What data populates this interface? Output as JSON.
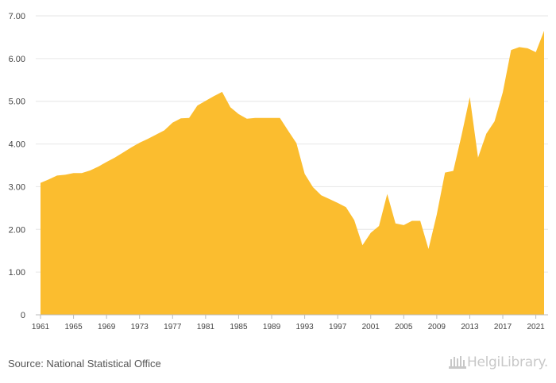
{
  "chart_data": {
    "type": "area",
    "color": "#FBBD2F",
    "grid": "horizontal",
    "ylim": [
      0,
      7
    ],
    "y_ticks": [
      "0",
      "1.00",
      "2.00",
      "3.00",
      "4.00",
      "5.00",
      "6.00",
      "7.00"
    ],
    "x_ticks": [
      "1961",
      "1965",
      "1969",
      "1973",
      "1977",
      "1981",
      "1985",
      "1989",
      "1993",
      "1997",
      "2001",
      "2005",
      "2009",
      "2013",
      "2017",
      "2021"
    ],
    "x": [
      1961,
      1962,
      1963,
      1964,
      1965,
      1966,
      1967,
      1968,
      1969,
      1970,
      1971,
      1972,
      1973,
      1974,
      1975,
      1976,
      1977,
      1978,
      1979,
      1980,
      1981,
      1982,
      1983,
      1984,
      1985,
      1986,
      1987,
      1988,
      1989,
      1990,
      1991,
      1992,
      1993,
      1994,
      1995,
      1996,
      1997,
      1998,
      1999,
      2000,
      2001,
      2002,
      2003,
      2004,
      2005,
      2006,
      2007,
      2008,
      2009,
      2010,
      2011,
      2012,
      2013,
      2014,
      2015,
      2016,
      2017,
      2018,
      2019,
      2020,
      2021,
      2022
    ],
    "values": [
      3.09,
      3.17,
      3.26,
      3.28,
      3.32,
      3.32,
      3.38,
      3.47,
      3.58,
      3.68,
      3.8,
      3.92,
      4.03,
      4.12,
      4.22,
      4.32,
      4.5,
      4.6,
      4.61,
      4.9,
      5.01,
      5.12,
      5.22,
      4.86,
      4.7,
      4.59,
      4.61,
      4.61,
      4.61,
      4.61,
      4.31,
      4.02,
      3.3,
      2.99,
      2.8,
      2.71,
      2.62,
      2.52,
      2.22,
      1.63,
      1.92,
      2.08,
      2.83,
      2.14,
      2.1,
      2.2,
      2.2,
      1.54,
      2.35,
      3.33,
      3.37,
      4.2,
      5.1,
      3.68,
      4.24,
      4.53,
      5.21,
      6.2,
      6.27,
      6.24,
      6.15,
      6.65
    ]
  },
  "footer": {
    "source": "Source: National Statistical Office",
    "brand": "HelgiLibrary."
  }
}
